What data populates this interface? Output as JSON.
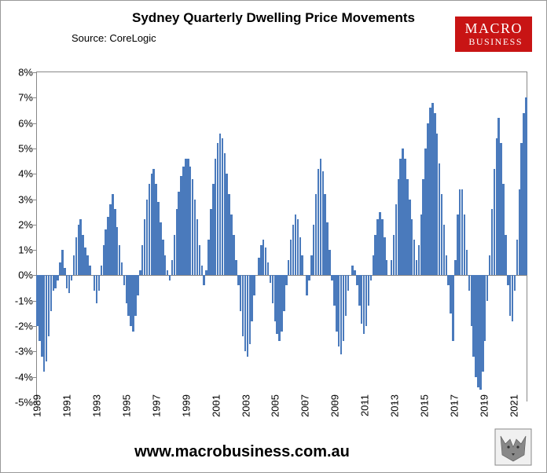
{
  "title": "Sydney Quarterly Dwelling Price Movements",
  "source": "Source: CoreLogic",
  "logo": {
    "line1": "MACRO",
    "line2": "BUSINESS",
    "bg": "#c81414",
    "fg": "#ffffff"
  },
  "url": "www.macrobusiness.com.au",
  "chart": {
    "type": "bar",
    "bar_color": "#4a7abc",
    "axis_color": "#888888",
    "background_color": "#ffffff",
    "title_fontsize": 17,
    "label_fontsize": 13,
    "ylim": [
      -5,
      8
    ],
    "ytick_step": 1,
    "ytick_format": "percent",
    "xtick_years": [
      1989,
      1991,
      1993,
      1995,
      1997,
      1999,
      2001,
      2003,
      2005,
      2007,
      2009,
      2011,
      2013,
      2015,
      2017,
      2019,
      2021
    ],
    "xtick_rotation": -90,
    "bar_gap_ratio": 0.15,
    "values": [
      -2.0,
      -2.6,
      -3.2,
      -3.8,
      -3.4,
      -2.4,
      -1.4,
      -0.6,
      -0.5,
      -0.2,
      0.5,
      1.0,
      0.3,
      -0.5,
      -0.7,
      -0.2,
      0.8,
      1.5,
      2.0,
      2.2,
      1.6,
      1.1,
      0.8,
      0.4,
      0.0,
      -0.6,
      -1.1,
      -0.6,
      0.4,
      1.2,
      1.8,
      2.3,
      2.8,
      3.2,
      2.6,
      1.9,
      1.2,
      0.5,
      -0.4,
      -1.1,
      -1.6,
      -2.0,
      -2.2,
      -1.6,
      -0.8,
      0.2,
      1.2,
      2.2,
      3.0,
      3.6,
      4.0,
      4.2,
      3.6,
      2.9,
      2.1,
      1.4,
      0.8,
      0.2,
      -0.2,
      0.6,
      1.6,
      2.6,
      3.3,
      3.9,
      4.3,
      4.6,
      4.6,
      4.3,
      3.8,
      3.0,
      2.2,
      1.2,
      0.4,
      -0.4,
      0.2,
      1.4,
      2.6,
      3.6,
      4.6,
      5.2,
      5.6,
      5.4,
      4.8,
      4.0,
      3.2,
      2.4,
      1.6,
      0.6,
      -0.4,
      -1.4,
      -2.4,
      -3.0,
      -3.2,
      -2.7,
      -1.8,
      -0.8,
      0.0,
      0.7,
      1.2,
      1.4,
      1.1,
      0.5,
      -0.3,
      -1.1,
      -1.8,
      -2.3,
      -2.6,
      -2.2,
      -1.4,
      -0.4,
      0.6,
      1.4,
      2.0,
      2.4,
      2.2,
      1.5,
      0.8,
      0.0,
      -0.8,
      -0.2,
      0.8,
      2.0,
      3.2,
      4.2,
      4.6,
      4.1,
      3.2,
      2.1,
      1.0,
      -0.2,
      -1.2,
      -2.2,
      -2.8,
      -3.1,
      -2.6,
      -1.6,
      -0.6,
      0.0,
      0.4,
      0.2,
      -0.4,
      -1.2,
      -1.9,
      -2.3,
      -2.0,
      -1.2,
      -0.2,
      0.8,
      1.6,
      2.2,
      2.5,
      2.2,
      1.5,
      0.6,
      0.0,
      0.6,
      1.6,
      2.8,
      3.8,
      4.6,
      5.0,
      4.6,
      3.8,
      3.0,
      2.2,
      1.4,
      0.6,
      1.2,
      2.4,
      3.8,
      5.0,
      6.0,
      6.6,
      6.8,
      6.4,
      5.6,
      4.4,
      3.2,
      2.0,
      0.8,
      -0.4,
      -1.5,
      -2.6,
      0.6,
      2.4,
      3.4,
      3.4,
      2.4,
      1.0,
      -0.6,
      -2.0,
      -3.2,
      -4.0,
      -4.4,
      -4.5,
      -3.8,
      -2.6,
      -1.0,
      0.8,
      2.6,
      4.2,
      5.4,
      6.2,
      5.2,
      3.6,
      1.6,
      -0.4,
      -1.6,
      -1.8,
      -0.6,
      1.4,
      3.4,
      5.2,
      6.4,
      7.0
    ]
  }
}
